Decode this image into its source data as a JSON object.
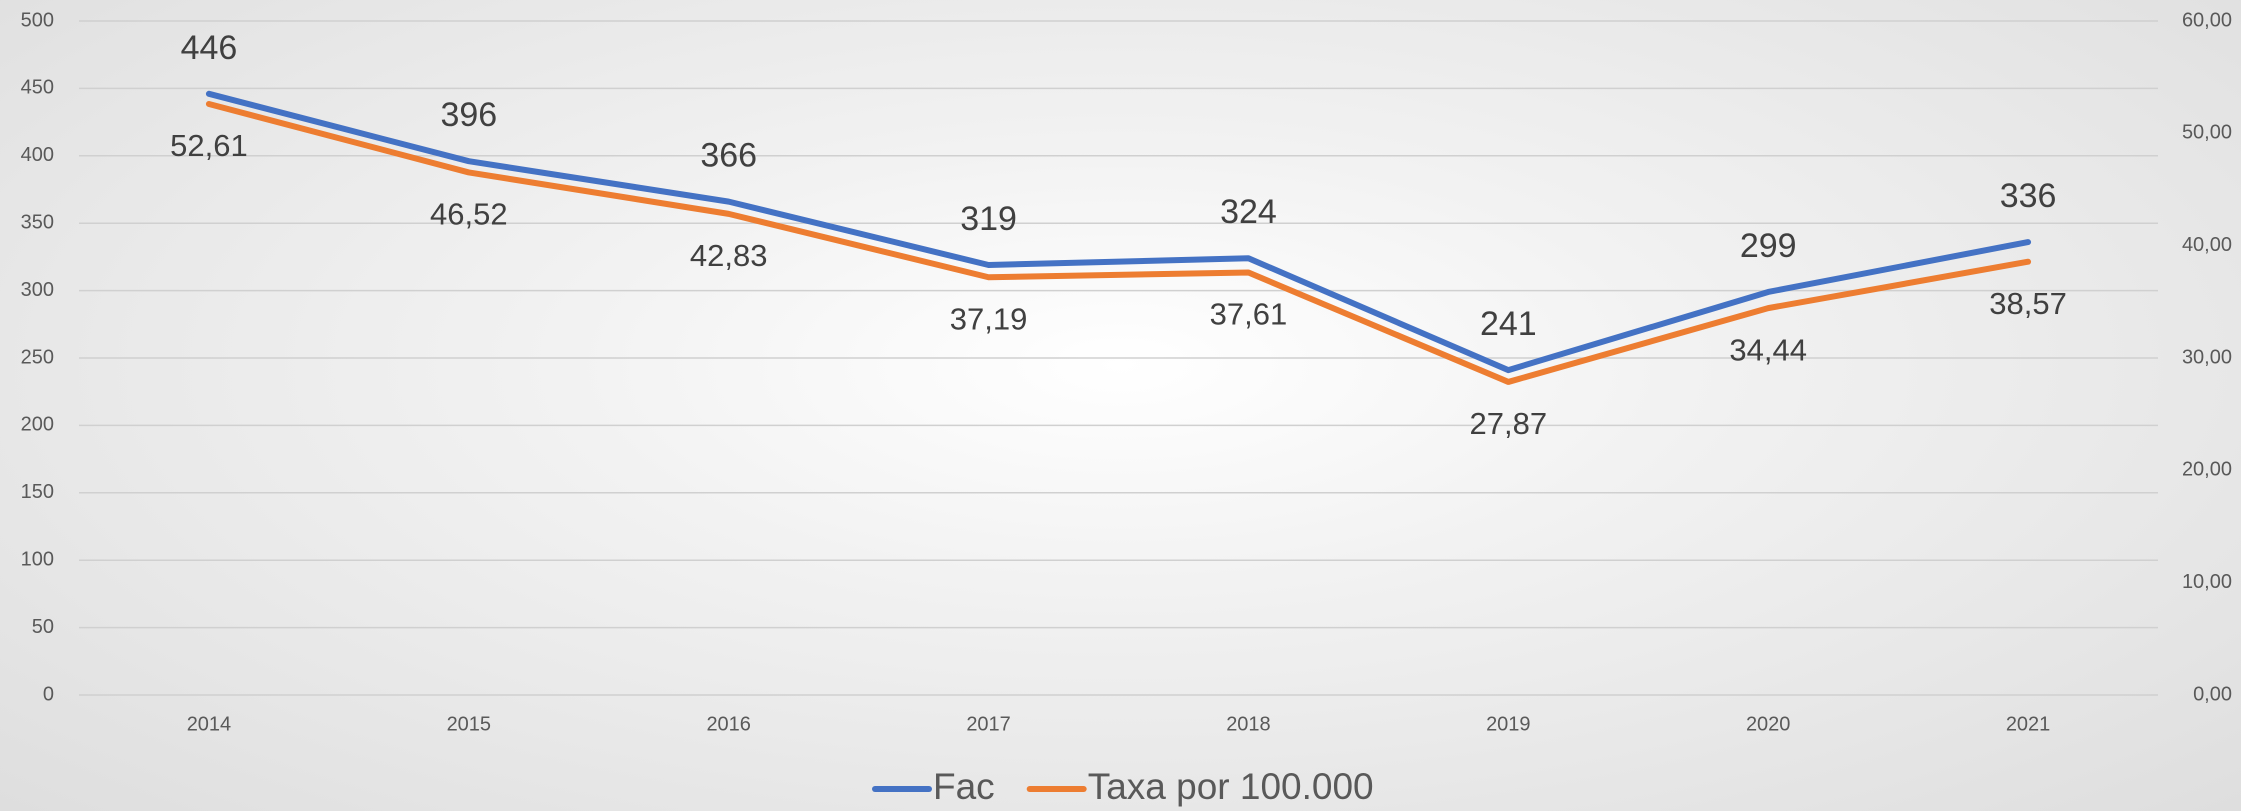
{
  "chart_data": {
    "type": "line",
    "categories": [
      "2014",
      "2015",
      "2016",
      "2017",
      "2018",
      "2019",
      "2020",
      "2021"
    ],
    "series": [
      {
        "name": "Fac",
        "color": "#4472c4",
        "values": [
          446,
          396,
          366,
          319,
          324,
          241,
          299,
          336
        ]
      },
      {
        "name": "Taxa por 100.000",
        "color": "#ed7d31",
        "axis": "y2",
        "values": [
          52.61,
          46.52,
          42.83,
          37.19,
          37.61,
          27.87,
          34.44,
          38.57
        ],
        "value_labels": [
          "52,61",
          "46,52",
          "42,83",
          "37,19",
          "37,61",
          "27,87",
          "34,44",
          "38,57"
        ]
      }
    ],
    "ylim": [
      0,
      500
    ],
    "yticks": [
      0,
      50,
      100,
      150,
      200,
      250,
      300,
      350,
      400,
      450,
      500
    ],
    "y2lim": [
      0,
      60
    ],
    "y2ticks": [
      {
        "value": 0,
        "label": "0,00"
      },
      {
        "value": 10,
        "label": "10,00"
      },
      {
        "value": 20,
        "label": "20,00"
      },
      {
        "value": 30,
        "label": "30,00"
      },
      {
        "value": 40,
        "label": "40,00"
      },
      {
        "value": 50,
        "label": "50,00"
      },
      {
        "value": 60,
        "label": "60,00"
      }
    ],
    "grid": true,
    "legend": "bottom"
  }
}
